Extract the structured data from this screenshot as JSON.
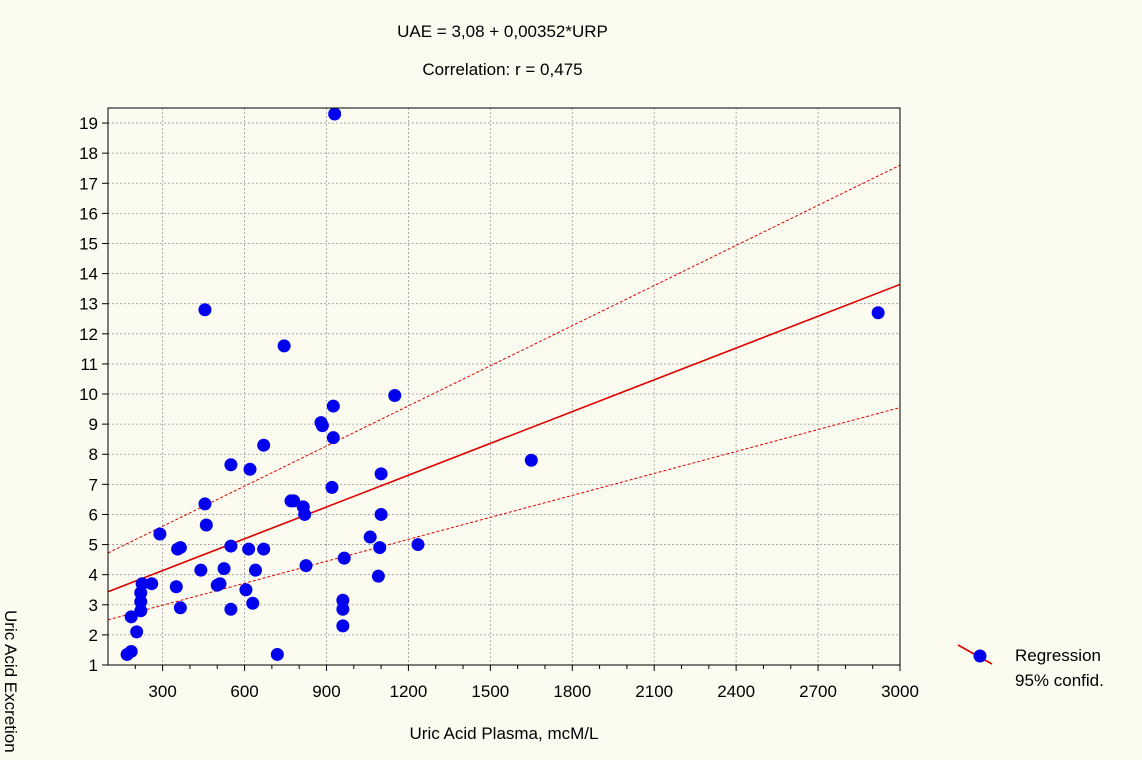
{
  "chart_data": {
    "type": "scatter",
    "title": "UAE = 3,08 + 0,00352*URP",
    "subtitle": "Correlation: r = 0,475",
    "xlabel": "Uric Acid Plasma, mcM/L",
    "ylabel": "Uric Acid Excretion",
    "xlim": [
      100,
      3000
    ],
    "ylim": [
      1,
      19.5
    ],
    "x_ticks": [
      300,
      600,
      900,
      1200,
      1500,
      1800,
      2100,
      2400,
      2700,
      3000
    ],
    "x_tick_labels": [
      "300",
      "600",
      "900",
      "1200",
      "1500",
      "1800",
      "2100",
      "2400",
      "2700",
      "3000"
    ],
    "y_ticks": [
      1,
      2,
      3,
      4,
      5,
      6,
      7,
      8,
      9,
      10,
      11,
      12,
      13,
      14,
      15,
      16,
      17,
      18,
      19
    ],
    "y_tick_labels": [
      "1",
      "2",
      "3",
      "4",
      "5",
      "6",
      "7",
      "8",
      "9",
      "10",
      "11",
      "12",
      "13",
      "14",
      "15",
      "16",
      "17",
      "18",
      "19"
    ],
    "grid": true,
    "legend": [
      "Regression",
      "95% confid."
    ],
    "legend_position": "bottom-right, outside plot",
    "regression": {
      "intercept": 3.08,
      "slope": 0.00352,
      "x_range": [
        100,
        3000
      ],
      "color": "#dd0000"
    },
    "confidence_band": {
      "upper": [
        [
          100,
          4.72
        ],
        [
          3000,
          17.6
        ]
      ],
      "lower": [
        [
          100,
          2.5
        ],
        [
          3000,
          9.55
        ]
      ],
      "color": "#dd0000",
      "style": "dashed"
    },
    "point_color": "#0000ee",
    "points": [
      [
        170,
        1.35
      ],
      [
        185,
        1.45
      ],
      [
        185,
        2.6
      ],
      [
        205,
        2.1
      ],
      [
        220,
        2.8
      ],
      [
        220,
        3.1
      ],
      [
        220,
        3.4
      ],
      [
        225,
        3.7
      ],
      [
        260,
        3.7
      ],
      [
        290,
        5.35
      ],
      [
        350,
        3.6
      ],
      [
        355,
        4.85
      ],
      [
        365,
        4.9
      ],
      [
        365,
        2.9
      ],
      [
        440,
        4.15
      ],
      [
        455,
        12.8
      ],
      [
        455,
        6.35
      ],
      [
        460,
        5.65
      ],
      [
        500,
        3.65
      ],
      [
        510,
        3.7
      ],
      [
        525,
        4.2
      ],
      [
        550,
        4.95
      ],
      [
        550,
        2.85
      ],
      [
        550,
        7.65
      ],
      [
        605,
        3.5
      ],
      [
        615,
        4.85
      ],
      [
        620,
        7.5
      ],
      [
        630,
        3.05
      ],
      [
        640,
        4.15
      ],
      [
        670,
        8.3
      ],
      [
        670,
        4.85
      ],
      [
        720,
        1.35
      ],
      [
        745,
        11.6
      ],
      [
        770,
        6.45
      ],
      [
        780,
        6.45
      ],
      [
        815,
        6.25
      ],
      [
        820,
        6.0
      ],
      [
        825,
        4.3
      ],
      [
        880,
        9.05
      ],
      [
        885,
        8.95
      ],
      [
        920,
        6.9
      ],
      [
        925,
        8.55
      ],
      [
        925,
        9.6
      ],
      [
        930,
        19.3
      ],
      [
        960,
        3.15
      ],
      [
        960,
        2.85
      ],
      [
        960,
        2.3
      ],
      [
        965,
        4.55
      ],
      [
        1060,
        5.25
      ],
      [
        1090,
        3.95
      ],
      [
        1095,
        4.9
      ],
      [
        1100,
        6.0
      ],
      [
        1100,
        7.35
      ],
      [
        1150,
        9.95
      ],
      [
        1235,
        5.0
      ],
      [
        1650,
        7.8
      ],
      [
        2920,
        12.7
      ]
    ]
  }
}
